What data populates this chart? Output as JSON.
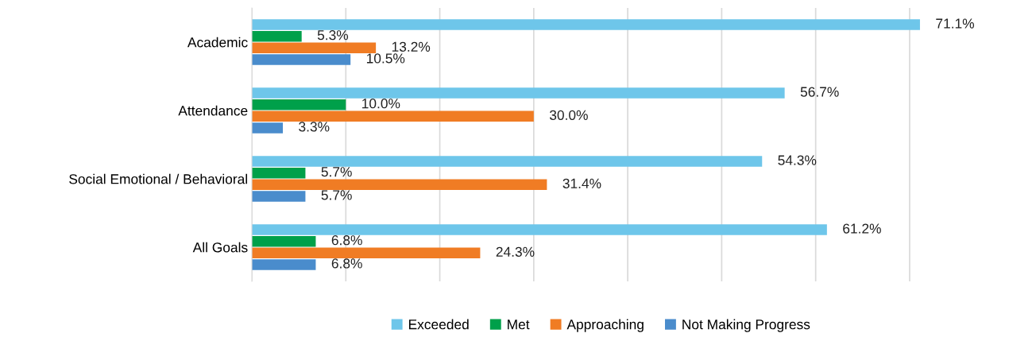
{
  "chart_data": {
    "type": "bar",
    "orientation": "horizontal",
    "categories": [
      "Academic",
      "Attendance",
      "Social Emotional / Behavioral",
      "All Goals"
    ],
    "series": [
      {
        "name": "Exceeded",
        "color": "#6ec6ea",
        "values": [
          71.1,
          56.7,
          54.3,
          61.2
        ],
        "value_labels": [
          "71.1%",
          "56.7%",
          "54.3%",
          "61.2%"
        ]
      },
      {
        "name": "Met",
        "color": "#00a04a",
        "values": [
          5.3,
          10.0,
          5.7,
          6.8
        ],
        "value_labels": [
          "5.3%",
          "10.0%",
          "5.7%",
          "6.8%"
        ]
      },
      {
        "name": "Approaching",
        "color": "#f07c24",
        "values": [
          13.2,
          30.0,
          31.4,
          24.3
        ],
        "value_labels": [
          "13.2%",
          "30.0%",
          "31.4%",
          "24.3%"
        ]
      },
      {
        "name": "Not Making Progress",
        "color": "#4a8ccc",
        "values": [
          10.5,
          3.3,
          5.7,
          6.8
        ],
        "value_labels": [
          "10.5%",
          "3.3%",
          "5.7%",
          "6.8%"
        ]
      }
    ],
    "xticks": [
      {
        "value": 0,
        "label": null
      },
      {
        "value": 10,
        "label": null
      },
      {
        "value": 20,
        "label": null
      },
      {
        "value": 30,
        "label": null
      },
      {
        "value": 40,
        "label": null
      },
      {
        "value": 50,
        "label": null
      },
      {
        "value": 60,
        "label": null
      },
      {
        "value": 70,
        "label": null
      }
    ],
    "grid": "x",
    "legend": "bottom"
  }
}
